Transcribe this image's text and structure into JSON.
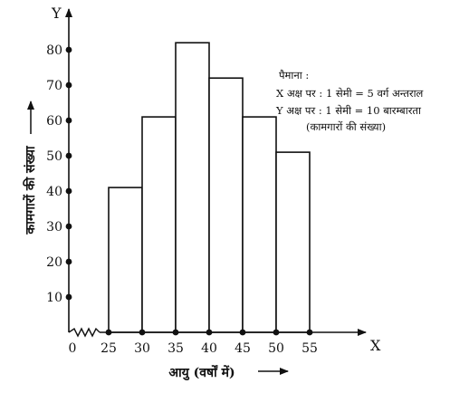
{
  "chart_data": {
    "type": "bar",
    "subtype": "histogram",
    "bins": [
      {
        "from": 25,
        "to": 30,
        "value": 41
      },
      {
        "from": 30,
        "to": 35,
        "value": 61
      },
      {
        "from": 35,
        "to": 40,
        "value": 82
      },
      {
        "from": 40,
        "to": 45,
        "value": 72
      },
      {
        "from": 45,
        "to": 50,
        "value": 61
      },
      {
        "from": 50,
        "to": 55,
        "value": 51
      }
    ],
    "x_ticks": [
      "0",
      "25",
      "30",
      "35",
      "40",
      "45",
      "50",
      "55"
    ],
    "y_ticks": [
      "10",
      "20",
      "30",
      "40",
      "50",
      "60",
      "70",
      "80"
    ],
    "xlabel": "आयु (वर्षों में)",
    "ylabel": "कामगारों की संख्या",
    "x_axis_letter": "X",
    "y_axis_letter": "Y",
    "ylim": [
      0,
      90
    ],
    "xlim": [
      25,
      61
    ],
    "x_axis_break": true,
    "grid": false,
    "legend": "none",
    "scale_note": [
      "पैमाना :",
      "X अक्ष पर : 1 सेमी = 5 वर्ग अन्तराल",
      "Y अक्ष पर : 1 सेमी = 10 बारम्बारता",
      "(कामगारों की संख्या)"
    ]
  }
}
